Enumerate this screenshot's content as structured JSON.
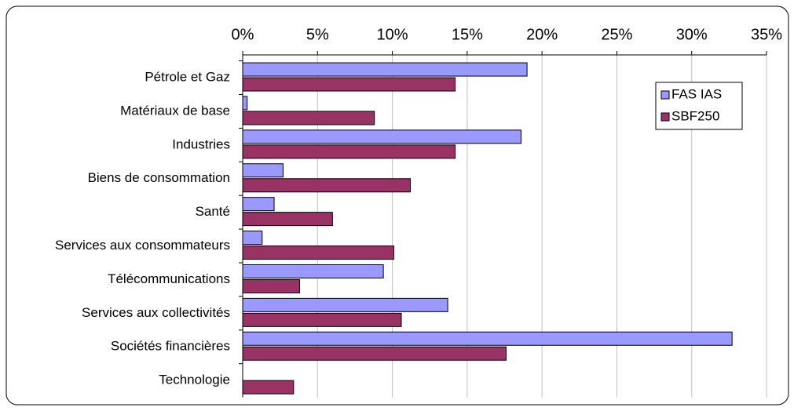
{
  "chart_data": {
    "type": "barh",
    "categories": [
      "Pétrole et Gaz",
      "Matériaux de base",
      "Industries",
      "Biens de consommation",
      "Santé",
      "Services aux consommateurs",
      "Télécommunications",
      "Services aux collectivités",
      "Sociétés financières",
      "Technologie"
    ],
    "series": [
      {
        "name": "FAS IAS",
        "color": "#9999ff",
        "values": [
          19.0,
          0.3,
          18.6,
          2.7,
          2.1,
          1.3,
          9.4,
          13.7,
          32.7,
          0
        ]
      },
      {
        "name": "SBF250",
        "color": "#993366",
        "values": [
          14.2,
          8.8,
          14.2,
          11.2,
          6.0,
          10.1,
          3.8,
          10.6,
          17.6,
          3.4
        ]
      }
    ],
    "xlim": [
      0,
      35
    ],
    "xticks": [
      {
        "value": 0,
        "label": "0%"
      },
      {
        "value": 5,
        "label": "5%"
      },
      {
        "value": 10,
        "label": "10%"
      },
      {
        "value": 15,
        "label": "15%"
      },
      {
        "value": 20,
        "label": "20%"
      },
      {
        "value": 25,
        "label": "25%"
      },
      {
        "value": 30,
        "label": "30%"
      },
      {
        "value": 35,
        "label": "35%"
      }
    ],
    "grid": true,
    "legend": "upper right"
  }
}
